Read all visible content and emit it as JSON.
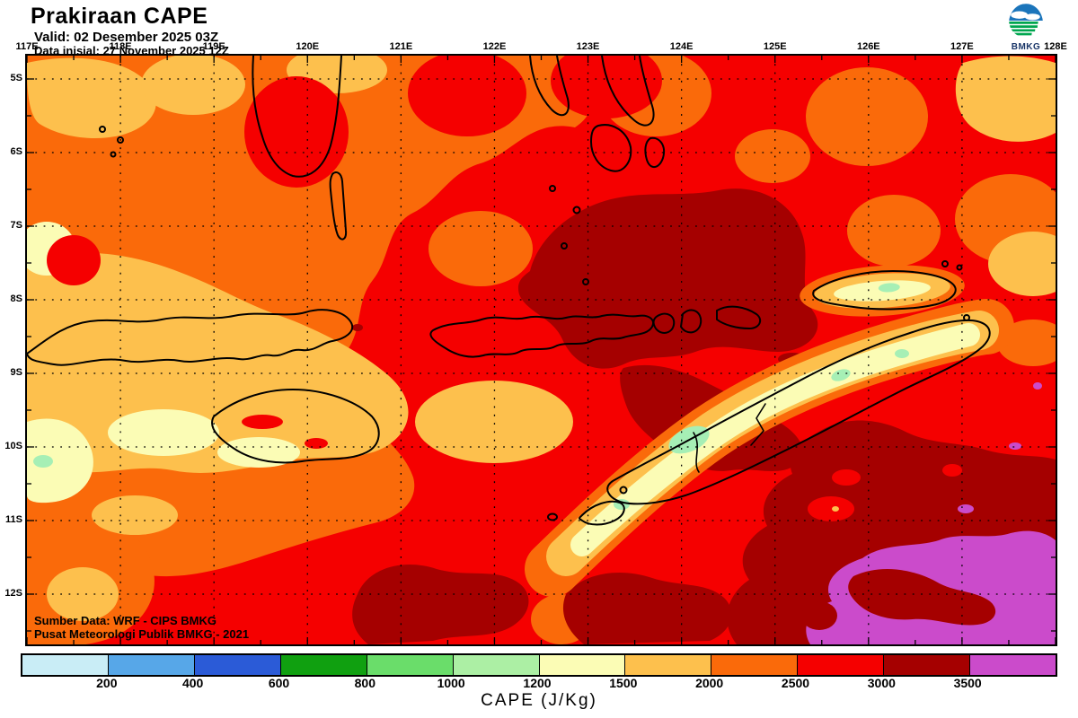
{
  "header": {
    "title": "Prakiraan CAPE",
    "valid_line": "Valid: 02 Desember 2025 03Z",
    "init_line": "Data inisial: 27 November 2025 12Z"
  },
  "logo": {
    "label": "BMKG"
  },
  "map": {
    "lon_labels": [
      "117E",
      "118E",
      "119E",
      "120E",
      "121E",
      "122E",
      "123E",
      "124E",
      "125E",
      "126E",
      "127E",
      "128E"
    ],
    "lat_labels": [
      "5S",
      "6S",
      "7S",
      "8S",
      "9S",
      "10S",
      "11S",
      "12S"
    ],
    "source_line1": "Sumber Data: WRF - CIPS BMKG",
    "source_line2": "Pusat Meteorologi Publik BMKG - 2021",
    "green_spot_color": "#A6EFB5"
  },
  "legend": {
    "title": "CAPE (J/Kg)",
    "unit": "J/Kg",
    "boundary_labels": [
      "200",
      "400",
      "600",
      "800",
      "1000",
      "1200",
      "1500",
      "2000",
      "2500",
      "3000",
      "3500"
    ],
    "colors": [
      "#C9EDF6",
      "#57A7E8",
      "#2B5BD7",
      "#10A010",
      "#6ADD6A",
      "#ACEFA4",
      "#FBFCB5",
      "#FDC04D",
      "#FA6A0A",
      "#F50000",
      "#A50000",
      "#CB4BCB"
    ]
  }
}
